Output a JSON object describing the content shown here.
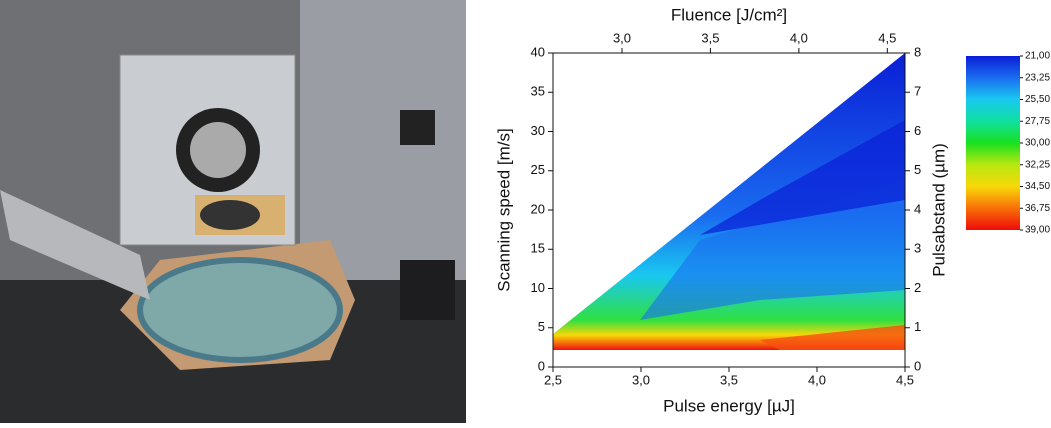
{
  "chart_data": {
    "type": "contour",
    "xlabel": "Pulse energy [µJ]",
    "ylabel": "Scanning speed [m/s]",
    "x2label": "Fluence [J/cm²]",
    "y2label": "Pulsabstand (µm)",
    "xlim": [
      2.5,
      4.5
    ],
    "xticks": [
      {
        "value": 2.5,
        "label": "2,5"
      },
      {
        "value": 3,
        "label": "3,0"
      },
      {
        "value": 3.5,
        "label": "3,5"
      },
      {
        "value": 4,
        "label": "4,0"
      },
      {
        "value": 4.5,
        "label": "4,5"
      }
    ],
    "x2lim": [
      2.61,
      4.6
    ],
    "x2ticks": [
      {
        "value": 3,
        "label": "3,0"
      },
      {
        "value": 3.5,
        "label": "3,5"
      },
      {
        "value": 4,
        "label": "4,0"
      },
      {
        "value": 4.5,
        "label": "4,5"
      }
    ],
    "ylim": [
      0,
      40
    ],
    "yticks": [
      0,
      5,
      10,
      15,
      20,
      25,
      30,
      35,
      40
    ],
    "y2lim": [
      0,
      8
    ],
    "y2ticks": [
      0,
      1,
      2,
      3,
      4,
      5,
      6,
      7,
      8
    ],
    "colorbar": {
      "lim": [
        21,
        39
      ],
      "ticks": [
        {
          "value": 21,
          "label": "21,00"
        },
        {
          "value": 23.25,
          "label": "23,25"
        },
        {
          "value": 25.5,
          "label": "25,50"
        },
        {
          "value": 27.75,
          "label": "27,75"
        },
        {
          "value": 30,
          "label": "30,00"
        },
        {
          "value": 32.25,
          "label": "32,25"
        },
        {
          "value": 34.5,
          "label": "34,50"
        },
        {
          "value": 36.75,
          "label": "36,75"
        },
        {
          "value": 39,
          "label": "39,00"
        }
      ],
      "colors": [
        "#0a1ed6",
        "#1a6cf0",
        "#19c8f0",
        "#10e0a0",
        "#18e020",
        "#b8e810",
        "#f8d808",
        "#f87008",
        "#f00a0a"
      ]
    }
  }
}
